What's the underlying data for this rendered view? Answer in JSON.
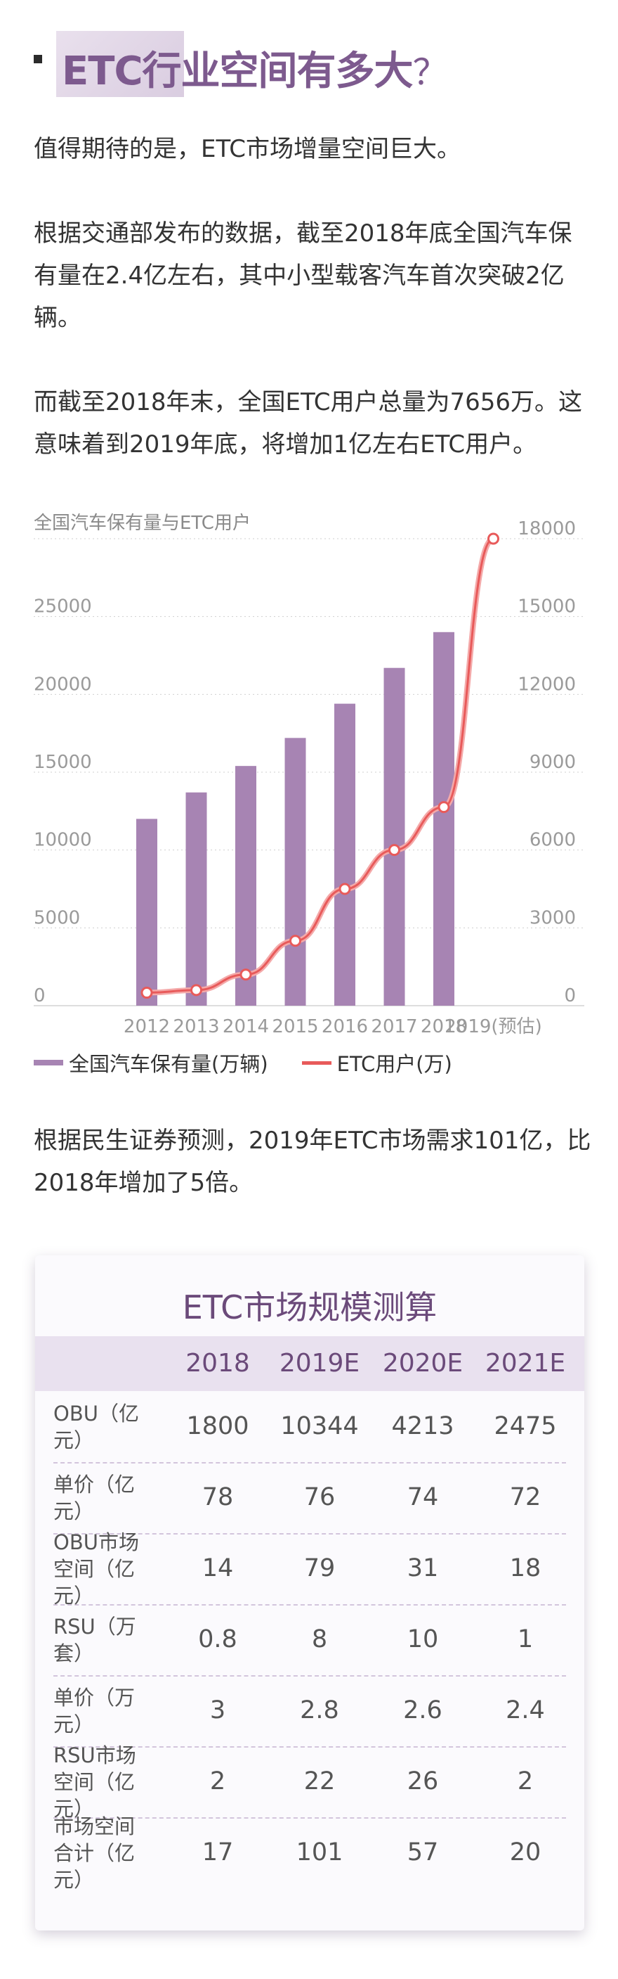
{
  "heading": {
    "text": "ETC行业空间有多大",
    "suffix": "？"
  },
  "paragraphs": [
    "值得期待的是，ETC市场增量空间巨大。",
    "根据交通部发布的数据，截至2018年底全国汽车保有量在2.4亿左右，其中小型载客汽车首次突破2亿辆。",
    "而截至2018年末，全国ETC用户总量为7656万。这意味着到2019年底，将增加1亿左右ETC用户。"
  ],
  "chart_data": {
    "type": "bar",
    "title": "全国汽车保有量与ETC用户",
    "categories": [
      "2012",
      "2013",
      "2014",
      "2015",
      "2016",
      "2017",
      "2018",
      "2019(预估)"
    ],
    "series": [
      {
        "name": "全国汽车保有量(万辆)",
        "type": "bar",
        "axis": "left",
        "values": [
          12000,
          13700,
          15400,
          17200,
          19400,
          21700,
          24000,
          null
        ]
      },
      {
        "name": "ETC用户(万)",
        "type": "line",
        "axis": "right",
        "values": [
          500,
          600,
          1200,
          2500,
          4500,
          6000,
          7656,
          18000
        ]
      }
    ],
    "y_left": {
      "ticks": [
        0,
        5000,
        10000,
        15000,
        20000,
        25000
      ],
      "range": [
        0,
        30000
      ]
    },
    "y_right": {
      "ticks": [
        0,
        3000,
        6000,
        9000,
        12000,
        15000,
        18000
      ],
      "range": [
        0,
        18000
      ]
    },
    "grid": "dotted-horizontal",
    "legend": "bottom-left",
    "colors": {
      "bar": "#a784b3",
      "line": "#e85a5a"
    }
  },
  "after_chart": "根据民生证券预测，2019年ETC市场需求101亿，比2018年增加了5倍。",
  "table": {
    "title": "ETC市场规模测算",
    "headers": [
      "2018",
      "2019E",
      "2020E",
      "2021E"
    ],
    "rows": [
      {
        "label": [
          "OBU（亿元）"
        ],
        "values": [
          "1800",
          "10344",
          "4213",
          "2475"
        ]
      },
      {
        "label": [
          "单价（亿元）"
        ],
        "values": [
          "78",
          "76",
          "74",
          "72"
        ]
      },
      {
        "label": [
          "OBU市场",
          "空间（亿元）"
        ],
        "values": [
          "14",
          "79",
          "31",
          "18"
        ]
      },
      {
        "label": [
          "RSU（万套）"
        ],
        "values": [
          "0.8",
          "8",
          "10",
          "1"
        ]
      },
      {
        "label": [
          "单价（万元）"
        ],
        "values": [
          "3",
          "2.8",
          "2.6",
          "2.4"
        ]
      },
      {
        "label": [
          "RSU市场",
          "空间（亿元）"
        ],
        "values": [
          "2",
          "22",
          "26",
          "2"
        ]
      },
      {
        "label": [
          "市场空间",
          "合计（亿元）"
        ],
        "values": [
          "17",
          "101",
          "57",
          "20"
        ]
      }
    ]
  },
  "colors": {
    "accent": "#7d5a8e",
    "bar": "#a784b3",
    "line": "#e85a5a",
    "table_head": "#e9e1ef"
  }
}
